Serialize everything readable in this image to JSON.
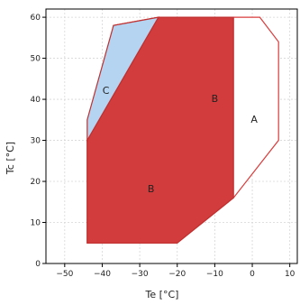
{
  "chart_data": {
    "type": "area",
    "xlabel": "Te [°C]",
    "ylabel": "Tc [°C]",
    "xlim": [
      -55,
      12
    ],
    "ylim": [
      0,
      62
    ],
    "xticks": [
      -50,
      -40,
      -30,
      -20,
      -10,
      0,
      10
    ],
    "yticks": [
      0,
      10,
      20,
      30,
      40,
      50,
      60
    ],
    "grid": true,
    "regions": [
      {
        "label": "A",
        "color": "#ffffff",
        "stroke": "#d93b3b",
        "label_at": [
          0.5,
          35
        ],
        "points": [
          [
            -20,
            5
          ],
          [
            -44,
            5
          ],
          [
            -44,
            30
          ],
          [
            -37,
            58
          ],
          [
            -25,
            60
          ],
          [
            2,
            60
          ],
          [
            7,
            54
          ],
          [
            7,
            30
          ],
          [
            -5,
            16
          ]
        ]
      },
      {
        "label": "B",
        "color": "#d23c3c",
        "stroke": "#c03030",
        "label_at": [
          -27,
          18
        ],
        "points": [
          [
            -44,
            5
          ],
          [
            -20,
            5
          ],
          [
            -5,
            16
          ],
          [
            -5,
            60
          ],
          [
            -25,
            60
          ],
          [
            -44,
            30
          ]
        ]
      },
      {
        "label": "B",
        "color": "#d23c3c",
        "stroke": "#c03030",
        "label_at": [
          -10,
          40
        ],
        "points": []
      },
      {
        "label": "C",
        "color": "#b5d4f1",
        "stroke": "#c03030",
        "label_at": [
          -39,
          42
        ],
        "points": [
          [
            -44,
            30
          ],
          [
            -44,
            35
          ],
          [
            -37,
            58
          ],
          [
            -25,
            60
          ]
        ]
      }
    ]
  }
}
